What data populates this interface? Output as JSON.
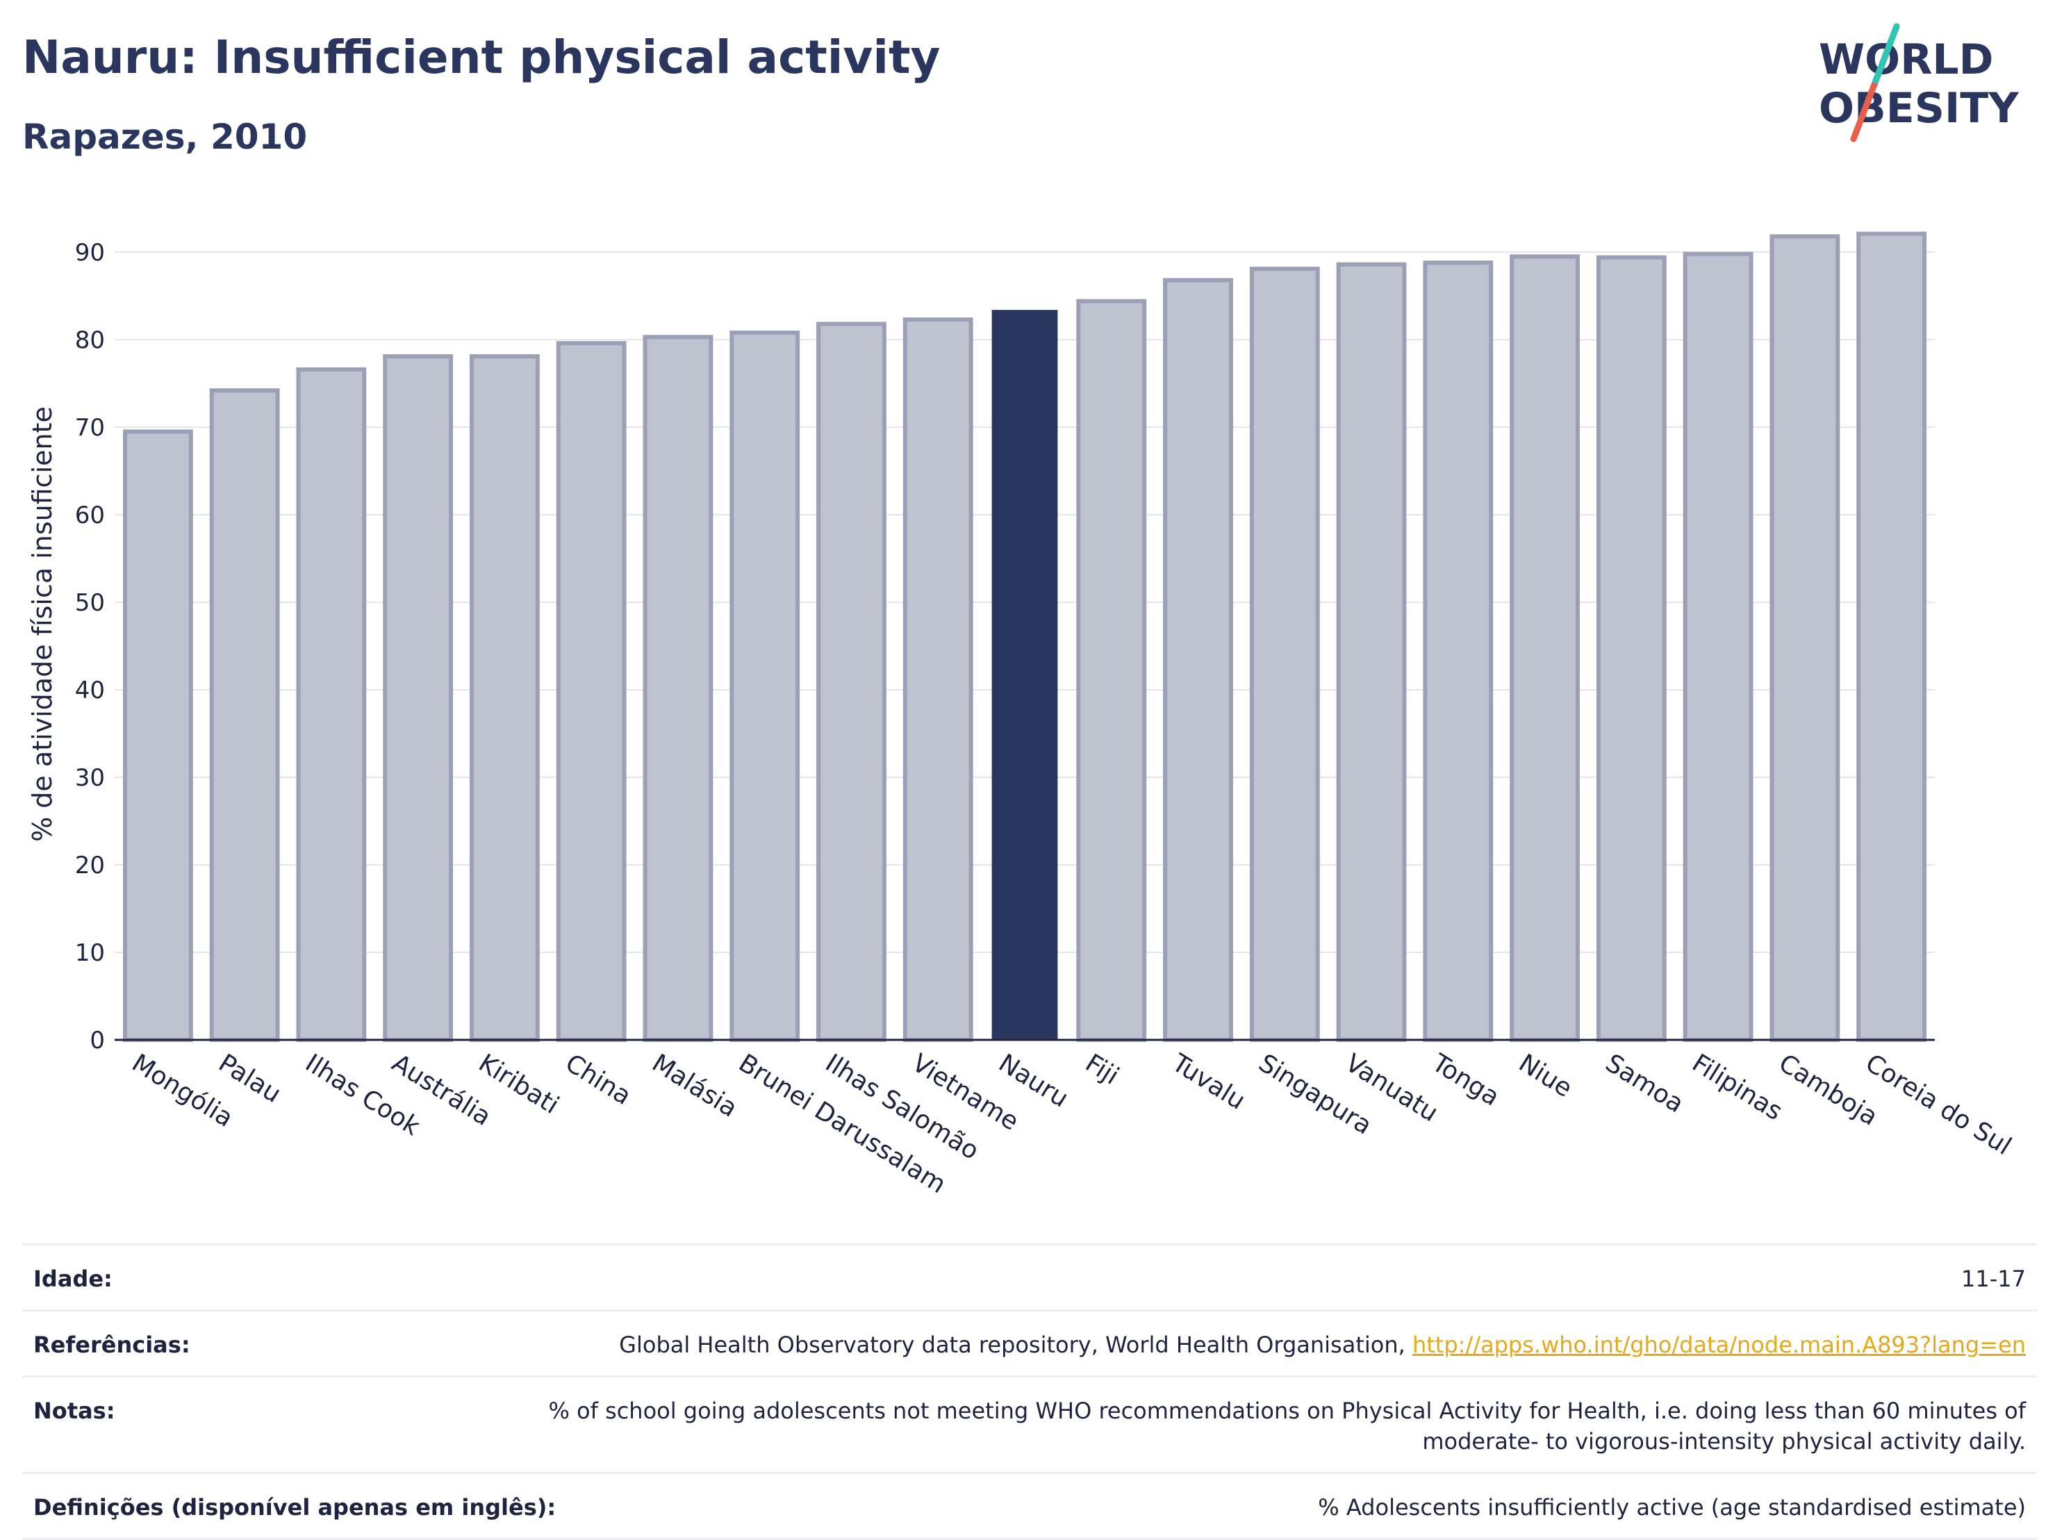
{
  "header": {
    "title": "Nauru: Insufficient physical activity",
    "subtitle": "Rapazes, 2010"
  },
  "logo": {
    "line1": "WORLD",
    "line2": "OBESITY",
    "accent_colors": [
      "#2ec4b6",
      "#e8604c"
    ]
  },
  "chart_data": {
    "type": "bar",
    "ylabel": "% de atividade física insuficiente",
    "ylim": [
      0,
      95
    ],
    "yticks": [
      0,
      10,
      20,
      30,
      40,
      50,
      60,
      70,
      80,
      90
    ],
    "grid": true,
    "highlight": "Nauru",
    "colors": {
      "bar": "#bfc2cf",
      "bar_edge": "#9ba0b6",
      "highlight": "#2b365f"
    },
    "categories": [
      "Mongólia",
      "Palau",
      "Ilhas Cook",
      "Austrália",
      "Kiribati",
      "China",
      "Malásia",
      "Brunei Darussalam",
      "Ilhas Salomão",
      "Vietname",
      "Nauru",
      "Fiji",
      "Tuvalu",
      "Singapura",
      "Vanuatu",
      "Tonga",
      "Niue",
      "Samoa",
      "Filipinas",
      "Camboja",
      "Coreia do Sul"
    ],
    "values": [
      69.5,
      74.2,
      76.6,
      78.1,
      78.1,
      79.6,
      80.3,
      80.8,
      81.8,
      82.3,
      83.4,
      84.4,
      86.8,
      88.1,
      88.6,
      88.8,
      89.5,
      89.4,
      89.8,
      91.8,
      92.1
    ]
  },
  "metadata": [
    {
      "key": "Idade:",
      "value": "11-17"
    },
    {
      "key": "Referências:",
      "value": "Global Health Observatory data repository, World Health Organisation, ",
      "link": "http://apps.who.int/gho/data/node.main.A893?lang=en"
    },
    {
      "key": "Notas:",
      "value": "% of school going adolescents not meeting WHO recommendations on Physical Activity for Health, i.e. doing less than 60 minutes of moderate- to vigorous-intensity physical activity daily."
    },
    {
      "key": "Definições (disponível apenas em inglês):",
      "value": "% Adolescents insufficiently active (age standardised estimate)"
    }
  ]
}
